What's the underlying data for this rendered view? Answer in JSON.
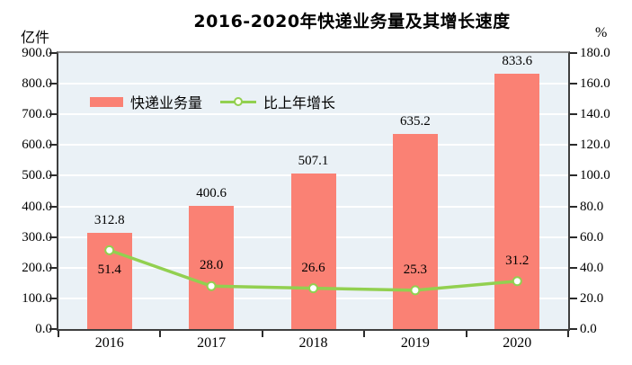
{
  "chart_data": {
    "type": "bar",
    "title": "2016-2020年快递业务量及其增长速度",
    "categories": [
      "2016",
      "2017",
      "2018",
      "2019",
      "2020"
    ],
    "series": [
      {
        "name": "快递业务量",
        "type": "bar",
        "axis": "left",
        "values": [
          312.8,
          400.6,
          507.1,
          635.2,
          833.6
        ],
        "labels": [
          "312.8",
          "400.6",
          "507.1",
          "635.2",
          "833.6"
        ],
        "color": "#fa8174"
      },
      {
        "name": "比上年增长",
        "type": "line",
        "axis": "right",
        "values": [
          51.4,
          28.0,
          26.6,
          25.3,
          31.2
        ],
        "labels": [
          "51.4",
          "28.0",
          "26.6",
          "25.3",
          "31.2"
        ],
        "color": "#92d050",
        "marker_fill": "#ffffff"
      }
    ],
    "left_axis": {
      "unit": "亿件",
      "min": 0,
      "max": 900,
      "step": 100,
      "ticks": [
        "900.0",
        "800.0",
        "700.0",
        "600.0",
        "500.0",
        "400.0",
        "300.0",
        "200.0",
        "100.0",
        "0.0"
      ]
    },
    "right_axis": {
      "unit": "%",
      "min": 0,
      "max": 180,
      "step": 20,
      "ticks": [
        "180.0",
        "160.0",
        "140.0",
        "120.0",
        "100.0",
        "80.0",
        "60.0",
        "40.0",
        "20.0",
        "0.0"
      ]
    },
    "legend_position": "top-left-inside",
    "grid": "horizontal-white",
    "plot_bg": "#eaf1f6",
    "grid_color": "#ffffff",
    "text_color": "#000000"
  }
}
